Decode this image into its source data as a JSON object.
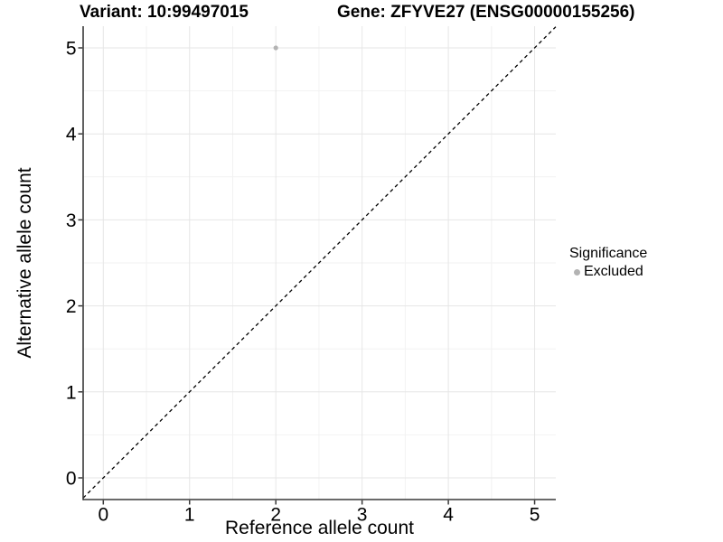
{
  "titles": {
    "variant": "Variant: 10:99497015",
    "gene": "Gene: ZFYVE27 (ENSG00000155256)"
  },
  "chart_data": {
    "type": "scatter",
    "title": "Variant: 10:99497015 — Gene: ZFYVE27 (ENSG00000155256)",
    "xlabel": "Reference allele count",
    "ylabel": "Alternative allele count",
    "x_ticks": [
      0,
      1,
      2,
      3,
      4,
      5
    ],
    "y_ticks": [
      0,
      1,
      2,
      3,
      4,
      5
    ],
    "xlim": [
      -0.234,
      5.245
    ],
    "ylim": [
      -0.234,
      5.245
    ],
    "grid": "major and minor gridlines on white background",
    "points": [
      {
        "x": 2,
        "y": 5,
        "series": "Excluded"
      }
    ],
    "identity_line": {
      "style": "dashed",
      "from": [
        -0.234,
        -0.234
      ],
      "to": [
        5.245,
        5.245
      ],
      "color": "#000000"
    },
    "legend": {
      "title": "Significance",
      "position": "right",
      "items": [
        {
          "label": "Excluded",
          "color": "#b3b3b3"
        }
      ]
    }
  },
  "colors": {
    "background": "#ffffff",
    "point": "#b3b3b3",
    "axis_line": "#383838",
    "grid_major": "#e6e6e6",
    "grid_minor": "#f2f2f2",
    "text": "#000000"
  }
}
